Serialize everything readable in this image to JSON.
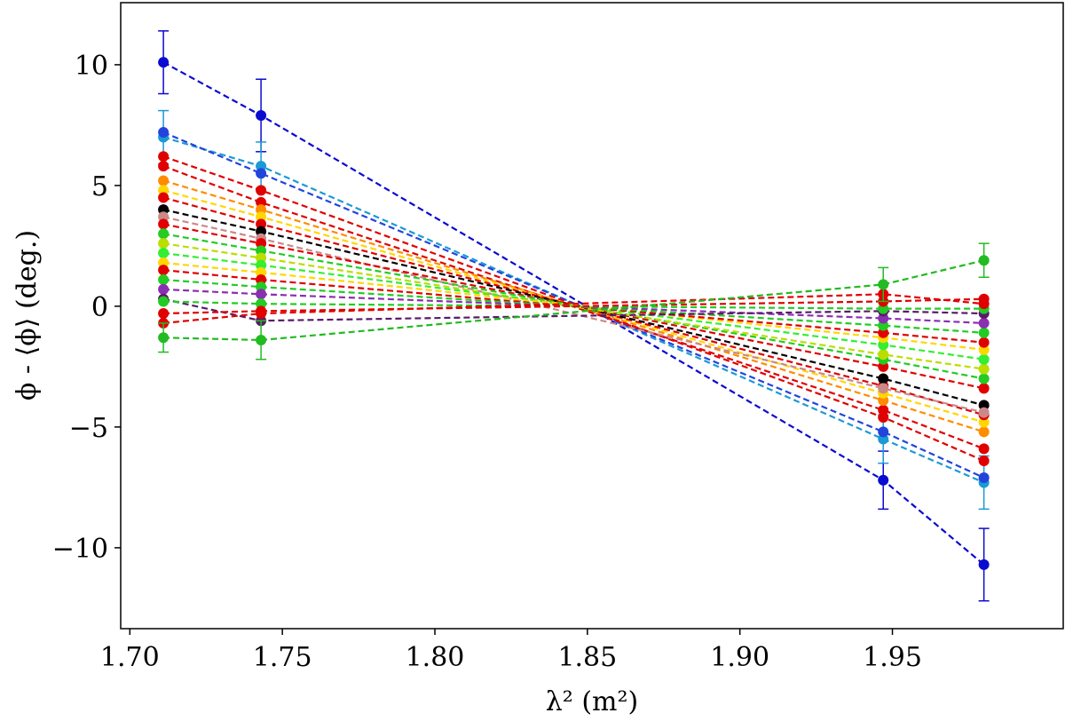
{
  "chart_data": {
    "type": "line",
    "x_label": "λ² (m²)",
    "y_label": "ϕ - ⟨ϕ⟩ (deg.)",
    "x": [
      1.711,
      1.743,
      1.947,
      1.98
    ],
    "xlim": [
      1.697,
      2.006
    ],
    "ylim": [
      -13.35,
      12.57
    ],
    "xticks": [
      {
        "value": 1.7,
        "label": "1.70"
      },
      {
        "value": 1.75,
        "label": "1.75"
      },
      {
        "value": 1.8,
        "label": "1.80"
      },
      {
        "value": 1.85,
        "label": "1.85"
      },
      {
        "value": 1.9,
        "label": "1.90"
      },
      {
        "value": 1.95,
        "label": "1.95"
      }
    ],
    "yticks": [
      {
        "value": -10,
        "label": "−10"
      },
      {
        "value": -5,
        "label": "−5"
      },
      0,
      5,
      10
    ],
    "series": [
      {
        "color": "#0a0ad0",
        "values": [
          10.1,
          7.9,
          -7.2,
          -10.7
        ],
        "errors": [
          1.3,
          1.5,
          1.2,
          1.5
        ]
      },
      {
        "color": "#1a9ad6",
        "values": [
          7.0,
          5.8,
          -5.5,
          -7.3
        ],
        "errors": [
          1.1,
          1.0,
          1.0,
          1.1
        ]
      },
      {
        "color": "#2244dd",
        "values": [
          7.2,
          5.5,
          -5.2,
          -7.1
        ]
      },
      {
        "color": "#e00000",
        "values": [
          6.2,
          4.8,
          -4.6,
          -6.4
        ]
      },
      {
        "color": "#e00000",
        "values": [
          5.8,
          4.3,
          -4.3,
          -5.9
        ]
      },
      {
        "color": "#ff8c00",
        "values": [
          5.2,
          4.0,
          -3.9,
          -5.2
        ]
      },
      {
        "color": "#ffd700",
        "values": [
          4.8,
          3.7,
          -3.6,
          -4.8
        ]
      },
      {
        "color": "#e00000",
        "values": [
          4.5,
          3.4,
          -3.3,
          -4.5
        ]
      },
      {
        "color": "#000000",
        "values": [
          4.0,
          3.1,
          -3.0,
          -4.1
        ]
      },
      {
        "color": "#cc8888",
        "values": [
          3.7,
          2.8,
          -3.4,
          -4.4
        ]
      },
      {
        "color": "#e00000",
        "values": [
          3.4,
          2.6,
          -2.5,
          -3.4
        ]
      },
      {
        "color": "#22cc22",
        "values": [
          3.0,
          2.3,
          -2.2,
          -3.0
        ]
      },
      {
        "color": "#bbdd00",
        "values": [
          2.6,
          2.0,
          -2.0,
          -2.6
        ]
      },
      {
        "color": "#33ee33",
        "values": [
          2.2,
          1.7,
          -1.6,
          -2.2
        ]
      },
      {
        "color": "#ffd700",
        "values": [
          1.8,
          1.4,
          -1.3,
          -1.8
        ]
      },
      {
        "color": "#e00000",
        "values": [
          1.5,
          1.1,
          -1.1,
          -1.5
        ]
      },
      {
        "color": "#22cc22",
        "values": [
          1.1,
          0.8,
          -0.8,
          -1.1
        ]
      },
      {
        "color": "#8a2fb2",
        "values": [
          0.7,
          0.5,
          -0.5,
          -0.7
        ]
      },
      {
        "color": "#5a1a6a",
        "values": [
          0.3,
          -0.6,
          -0.2,
          -0.3
        ]
      },
      {
        "color": "#22cc22",
        "values": [
          0.2,
          0.1,
          -0.1,
          -0.1
        ]
      },
      {
        "color": "#e00000",
        "values": [
          -0.3,
          -0.2,
          0.2,
          0.3
        ]
      },
      {
        "color": "#e00000",
        "values": [
          -0.7,
          -0.3,
          0.5,
          0.1
        ]
      },
      {
        "color": "#22bb22",
        "values": [
          -1.3,
          -1.4,
          0.9,
          1.9
        ],
        "errors": [
          0.6,
          0.8,
          0.7,
          0.7
        ]
      }
    ]
  }
}
